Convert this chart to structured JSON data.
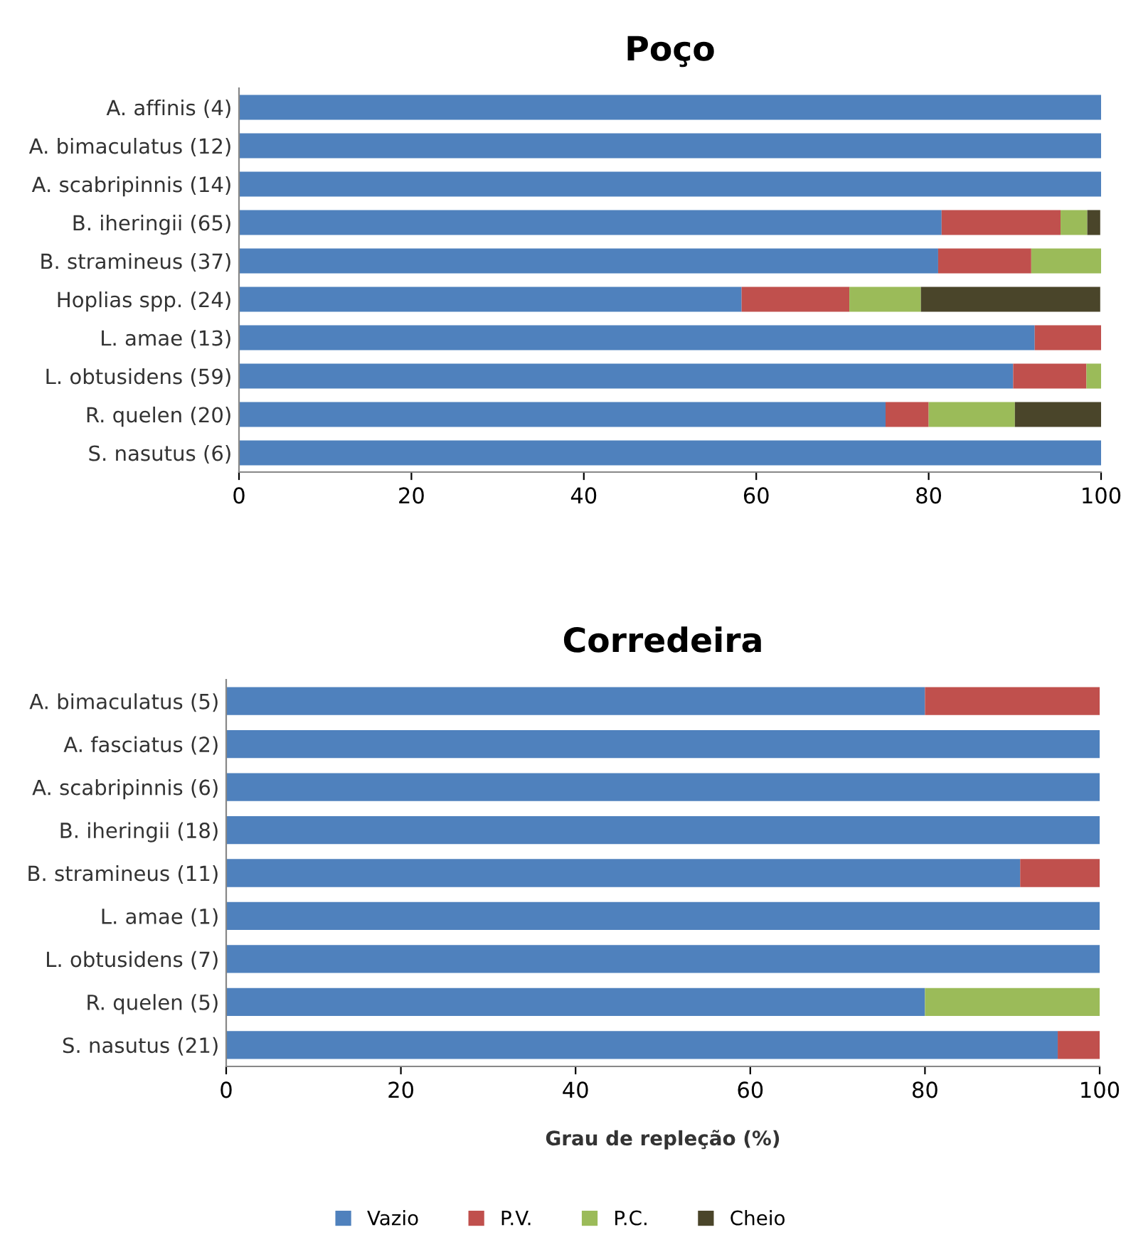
{
  "chart_data": [
    {
      "type": "bar",
      "orientation": "horizontal",
      "stacked": true,
      "title": "Poço",
      "categories": [
        "A. affinis (4)",
        "A. bimaculatus (12)",
        "A. scabripinnis (14)",
        "B. iheringii (65)",
        "B. stramineus (37)",
        "Hoplias spp. (24)",
        "L. amae (13)",
        "L. obtusidens (59)",
        "R. quelen (20)",
        "S. nasutus (6)"
      ],
      "series": [
        {
          "color": "#4f81bd",
          "values": [
            100,
            100,
            100,
            81.5,
            81.1,
            58.3,
            92.3,
            89.8,
            75,
            100
          ]
        },
        {
          "color": "#c0504d",
          "values": [
            0,
            0,
            0,
            13.8,
            10.8,
            12.5,
            7.7,
            8.5,
            5,
            0
          ]
        },
        {
          "color": "#9bbb59",
          "values": [
            0,
            0,
            0,
            3.1,
            8.1,
            8.3,
            0,
            1.7,
            10,
            0
          ]
        },
        {
          "color": "#4a452a",
          "values": [
            0,
            0,
            0,
            1.5,
            0,
            20.8,
            0,
            0,
            10,
            0
          ]
        }
      ],
      "xlim": [
        0,
        100
      ],
      "xticks": [
        0,
        20,
        40,
        60,
        80,
        100
      ],
      "grid": false
    },
    {
      "type": "bar",
      "orientation": "horizontal",
      "stacked": true,
      "title": "Corredeira",
      "xlabel": "Grau de repleção (%)",
      "categories": [
        "A. bimaculatus (5)",
        "A. fasciatus (2)",
        "A. scabripinnis (6)",
        "B. iheringii (18)",
        "B. stramineus (11)",
        "L. amae (1)",
        "L. obtusidens (7)",
        "R. quelen (5)",
        "S. nasutus (21)"
      ],
      "series": [
        {
          "name": "Vazio",
          "color": "#4f81bd",
          "values": [
            80,
            100,
            100,
            100,
            90.9,
            100,
            100,
            80,
            95.2
          ]
        },
        {
          "name": "P.V.",
          "color": "#c0504d",
          "values": [
            20,
            0,
            0,
            0,
            9.1,
            0,
            0,
            0,
            4.8
          ]
        },
        {
          "name": "P.C.",
          "color": "#9bbb59",
          "values": [
            0,
            0,
            0,
            0,
            0,
            0,
            0,
            20,
            0
          ]
        },
        {
          "name": "Cheio",
          "color": "#4a452a",
          "values": [
            0,
            0,
            0,
            0,
            0,
            0,
            0,
            0,
            0
          ]
        }
      ],
      "xlim": [
        0,
        100
      ],
      "xticks": [
        0,
        20,
        40,
        60,
        80,
        100
      ],
      "grid": false,
      "legend": "bottom"
    }
  ]
}
